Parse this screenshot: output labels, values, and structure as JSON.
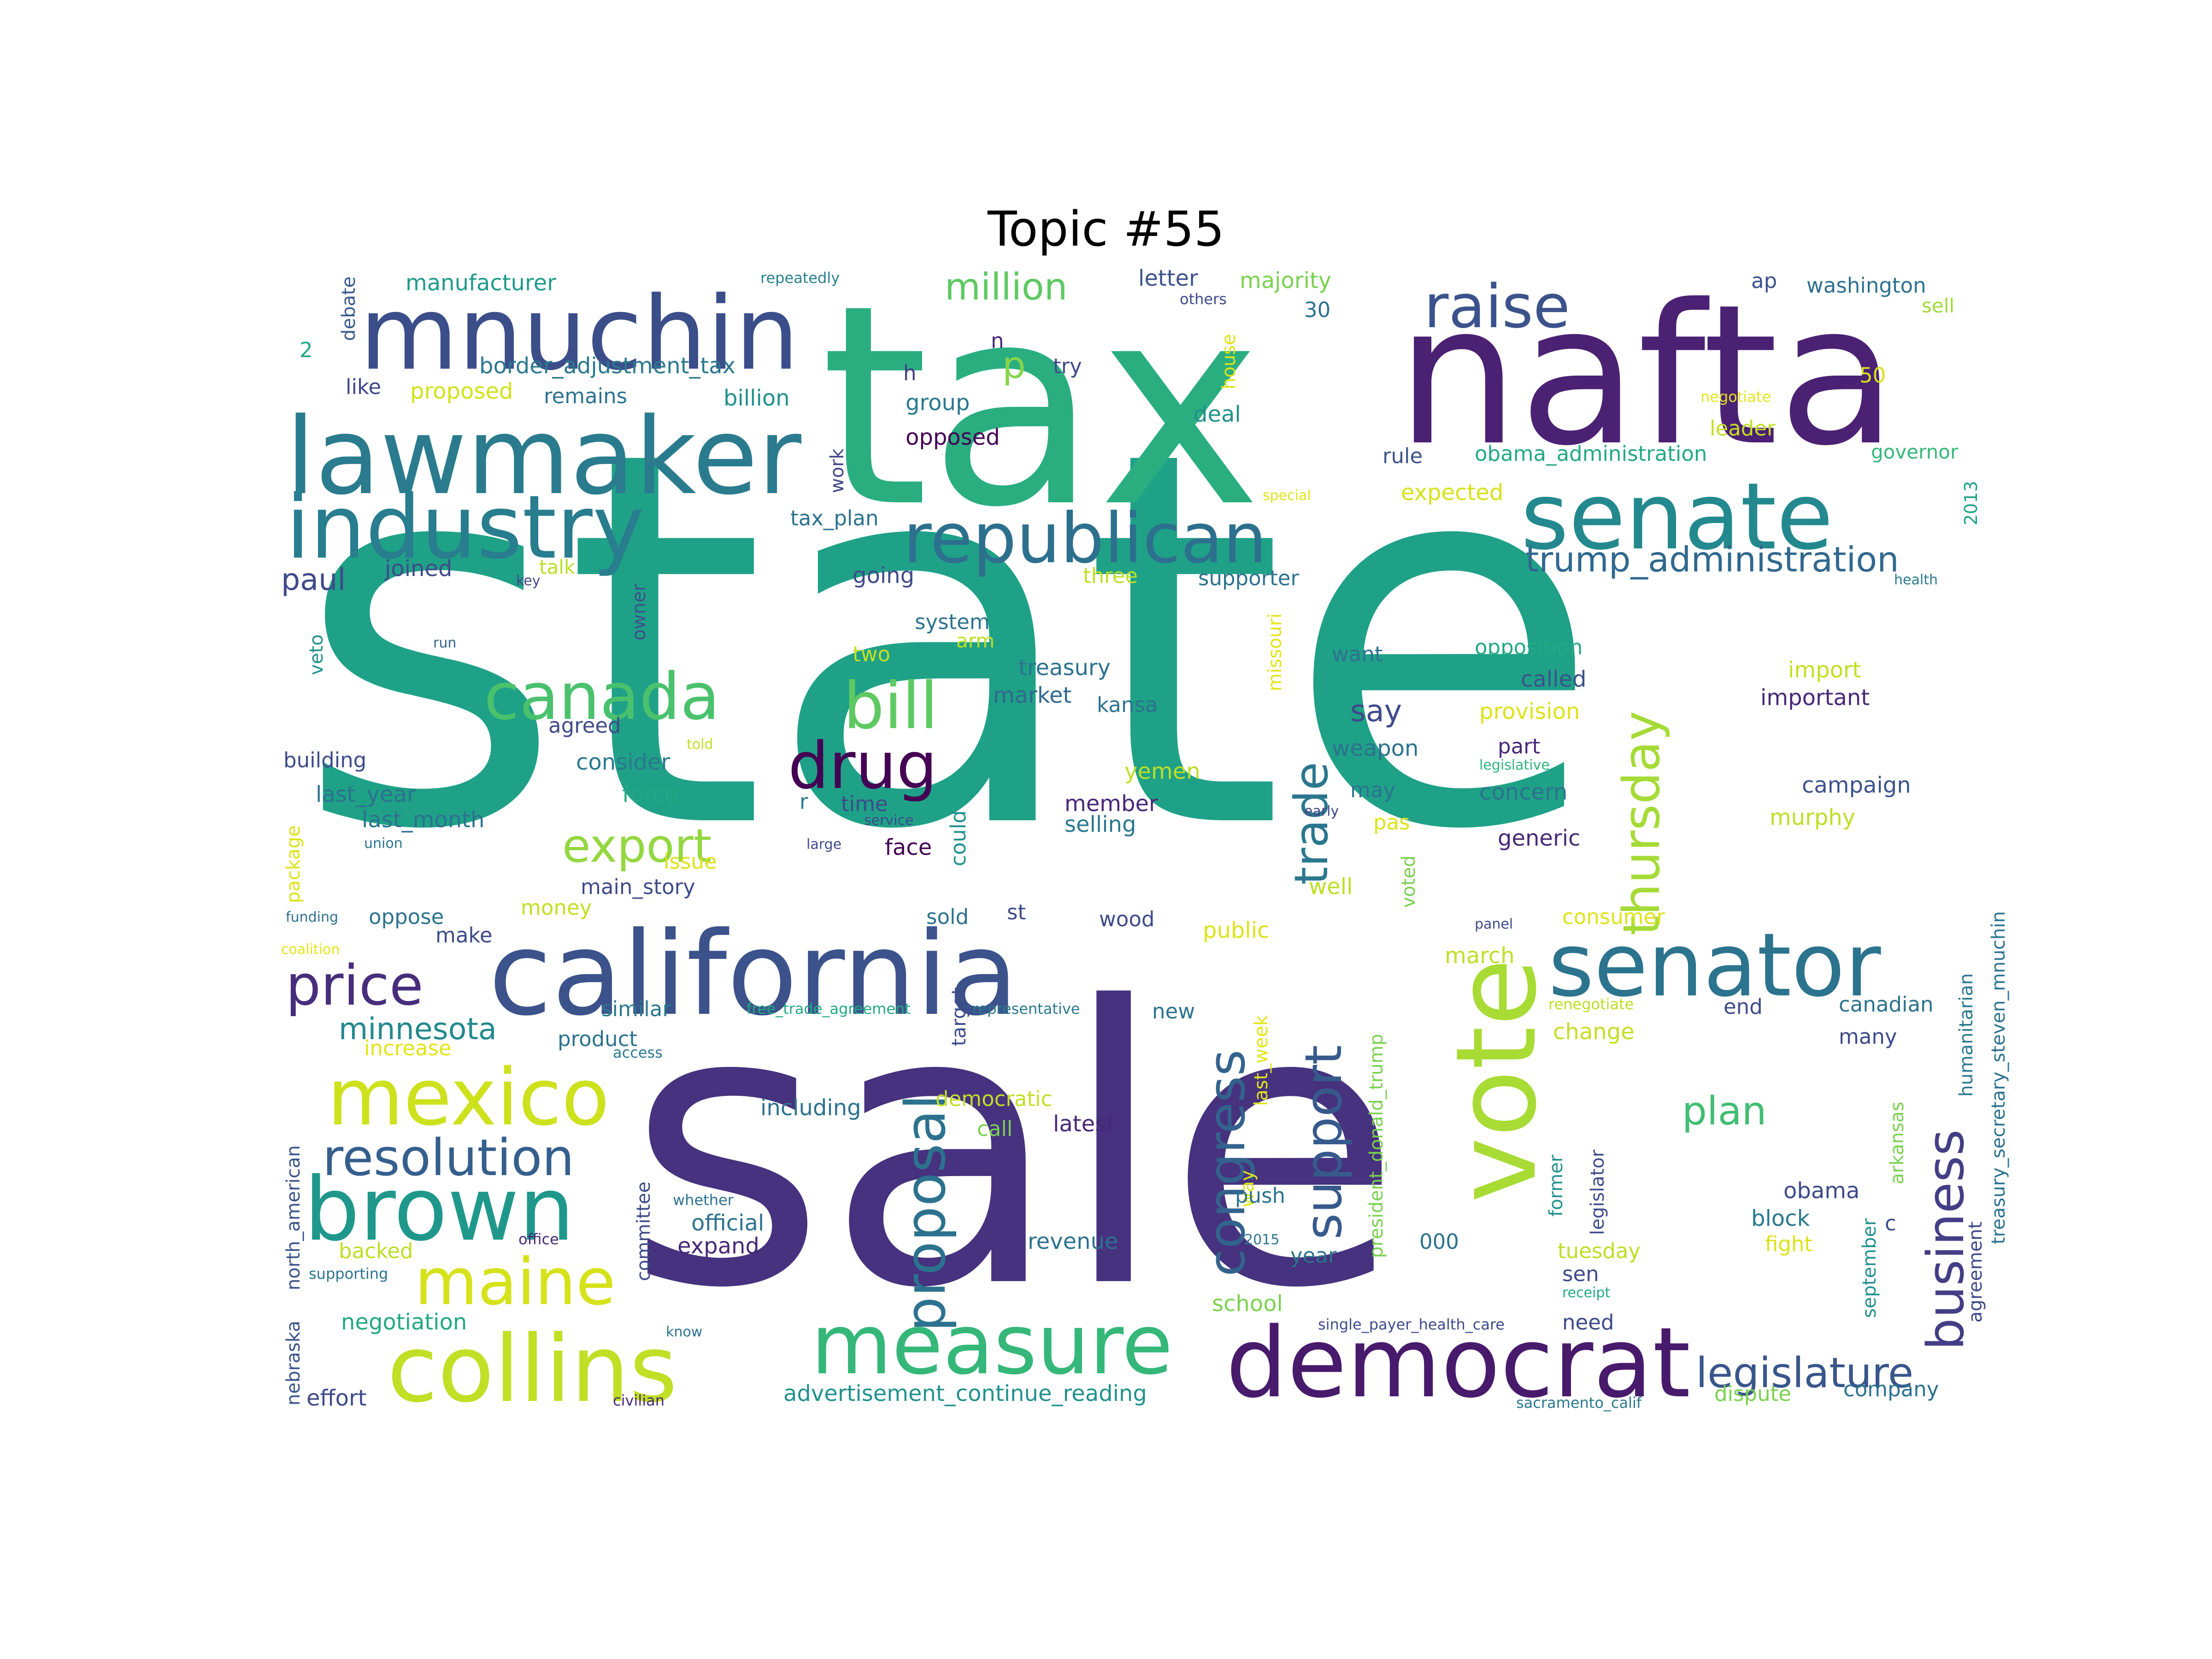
{
  "title": "Topic #55",
  "palette": {
    "dark_purple": "#440154",
    "indigo": "#46327e",
    "slate_blue": "#365c8d",
    "teal_blue": "#277f8e",
    "teal": "#1fa187",
    "green": "#4ac16d",
    "lime": "#a0da39",
    "yellow": "#cfe11c"
  },
  "words": [
    {
      "text": "state",
      "color": "#1fa187"
    },
    {
      "text": "sale",
      "color": "#46327e"
    },
    {
      "text": "tax",
      "color": "#2aae80"
    },
    {
      "text": "nafta",
      "color": "#4b2173"
    },
    {
      "text": "mnuchin",
      "color": "#3b4e8a"
    },
    {
      "text": "lawmaker",
      "color": "#2b7b8e"
    },
    {
      "text": "industry",
      "color": "#287d8e"
    },
    {
      "text": "republican",
      "color": "#2d708e"
    },
    {
      "text": "senate",
      "color": "#23898e"
    },
    {
      "text": "raise",
      "color": "#3b528b"
    },
    {
      "text": "california",
      "color": "#3b528b"
    },
    {
      "text": "vote",
      "color": "#a8db34"
    },
    {
      "text": "senator",
      "color": "#2c738e"
    },
    {
      "text": "democrat",
      "color": "#481a6c"
    },
    {
      "text": "measure",
      "color": "#35b779"
    },
    {
      "text": "collins",
      "color": "#c0df25"
    },
    {
      "text": "brown",
      "color": "#1f988b"
    },
    {
      "text": "mexico",
      "color": "#cde11d"
    },
    {
      "text": "maine",
      "color": "#d5e21a"
    },
    {
      "text": "canada",
      "color": "#4ac16d"
    },
    {
      "text": "bill",
      "color": "#5ec962"
    },
    {
      "text": "drug",
      "color": "#440154"
    },
    {
      "text": "export",
      "color": "#93d741"
    },
    {
      "text": "price",
      "color": "#472d7b"
    },
    {
      "text": "resolution",
      "color": "#355f8d"
    },
    {
      "text": "proposal",
      "color": "#2c728e"
    },
    {
      "text": "congress",
      "color": "#33638d"
    },
    {
      "text": "support",
      "color": "#375a8c"
    },
    {
      "text": "business",
      "color": "#433e85"
    },
    {
      "text": "thursday",
      "color": "#a5db36"
    },
    {
      "text": "trade",
      "color": "#2a778e"
    },
    {
      "text": "legislature",
      "color": "#39568c"
    },
    {
      "text": "plan",
      "color": "#40bd72"
    },
    {
      "text": "million",
      "color": "#5ec962"
    },
    {
      "text": "minnesota",
      "color": "#23898e"
    },
    {
      "text": "trump_administration",
      "color": "#31688e"
    },
    {
      "text": "paul",
      "color": "#3e4a89"
    },
    {
      "text": "manufacturer",
      "color": "#1f9a8a"
    },
    {
      "text": "repeatedly",
      "color": "#277f8e"
    },
    {
      "text": "letter",
      "color": "#3b528b"
    },
    {
      "text": "majority",
      "color": "#7ad151"
    },
    {
      "text": "ap",
      "color": "#3b528b"
    },
    {
      "text": "washington",
      "color": "#2d708e"
    },
    {
      "text": "sell",
      "color": "#a0da39"
    },
    {
      "text": "others",
      "color": "#3e4a89"
    },
    {
      "text": "30",
      "color": "#2c728e"
    },
    {
      "text": "debate",
      "color": "#38588c"
    },
    {
      "text": "2",
      "color": "#22a884"
    },
    {
      "text": "border_adjustment_tax",
      "color": "#2a788e"
    },
    {
      "text": "like",
      "color": "#3f4788"
    },
    {
      "text": "proposed",
      "color": "#d2e21b"
    },
    {
      "text": "remains",
      "color": "#2c728e"
    },
    {
      "text": "billion",
      "color": "#21908d"
    },
    {
      "text": "n",
      "color": "#482878"
    },
    {
      "text": "h",
      "color": "#443a83"
    },
    {
      "text": "try",
      "color": "#3e4a89"
    },
    {
      "text": "group",
      "color": "#2a788e"
    },
    {
      "text": "house",
      "color": "#dde318"
    },
    {
      "text": "deal",
      "color": "#21918c"
    },
    {
      "text": "negotiate",
      "color": "#e5e419"
    },
    {
      "text": "50",
      "color": "#d8e219"
    },
    {
      "text": "leader",
      "color": "#c2df23"
    },
    {
      "text": "governor",
      "color": "#35b779"
    },
    {
      "text": "work",
      "color": "#3f4788"
    },
    {
      "text": "opposed",
      "color": "#440154"
    },
    {
      "text": "rule",
      "color": "#3b528b"
    },
    {
      "text": "obama_administration",
      "color": "#22a884"
    },
    {
      "text": "special",
      "color": "#e2e418"
    },
    {
      "text": "expected",
      "color": "#d8e219"
    },
    {
      "text": "2013",
      "color": "#1fa188"
    },
    {
      "text": "tax_plan",
      "color": "#2c728e"
    },
    {
      "text": "p",
      "color": "#86d549"
    },
    {
      "text": "joined",
      "color": "#3e4a89"
    },
    {
      "text": "talk",
      "color": "#bade28"
    },
    {
      "text": "key",
      "color": "#404688"
    },
    {
      "text": "owner",
      "color": "#3b528b"
    },
    {
      "text": "going",
      "color": "#3e4a89"
    },
    {
      "text": "three",
      "color": "#bddf26"
    },
    {
      "text": "supporter",
      "color": "#2c728e"
    },
    {
      "text": "health",
      "color": "#2a788e"
    },
    {
      "text": "veto",
      "color": "#21918c"
    },
    {
      "text": "run",
      "color": "#33638d"
    },
    {
      "text": "system",
      "color": "#2c728e"
    },
    {
      "text": "arm",
      "color": "#bddf26"
    },
    {
      "text": "two",
      "color": "#c2df23"
    },
    {
      "text": "treasury",
      "color": "#2c728e"
    },
    {
      "text": "market",
      "color": "#31688e"
    },
    {
      "text": "kansa",
      "color": "#2c728e"
    },
    {
      "text": "missouri",
      "color": "#e2e418"
    },
    {
      "text": "want",
      "color": "#2c728e"
    },
    {
      "text": "opposition",
      "color": "#22a884"
    },
    {
      "text": "called",
      "color": "#3b528b"
    },
    {
      "text": "import",
      "color": "#c2df23"
    },
    {
      "text": "important",
      "color": "#482878"
    },
    {
      "text": "provision",
      "color": "#dde318"
    },
    {
      "text": "agreed",
      "color": "#3e4a89"
    },
    {
      "text": "told",
      "color": "#c2df23"
    },
    {
      "text": "weapon",
      "color": "#2c728e"
    },
    {
      "text": "part",
      "color": "#482878"
    },
    {
      "text": "say",
      "color": "#3e4a89"
    },
    {
      "text": "legislative",
      "color": "#2fb47c"
    },
    {
      "text": "building",
      "color": "#3e4a89"
    },
    {
      "text": "consider",
      "color": "#2a788e"
    },
    {
      "text": "force",
      "color": "#22a884"
    },
    {
      "text": "yemen",
      "color": "#bddf26"
    },
    {
      "text": "may",
      "color": "#2c728e"
    },
    {
      "text": "concern",
      "color": "#2c728e"
    },
    {
      "text": "campaign",
      "color": "#3b528b"
    },
    {
      "text": "last_year",
      "color": "#2c728e"
    },
    {
      "text": "r",
      "color": "#2a788e"
    },
    {
      "text": "time",
      "color": "#3e4a89"
    },
    {
      "text": "could",
      "color": "#21918c"
    },
    {
      "text": "member",
      "color": "#482878"
    },
    {
      "text": "early",
      "color": "#404688"
    },
    {
      "text": "murphy",
      "color": "#bddf26"
    },
    {
      "text": "last_month",
      "color": "#2c728e"
    },
    {
      "text": "service",
      "color": "#3e4a89"
    },
    {
      "text": "selling",
      "color": "#2a788e"
    },
    {
      "text": "pas",
      "color": "#dde318"
    },
    {
      "text": "generic",
      "color": "#482878"
    },
    {
      "text": "package",
      "color": "#dde318"
    },
    {
      "text": "union",
      "color": "#2c728e"
    },
    {
      "text": "large",
      "color": "#3e4a89"
    },
    {
      "text": "face",
      "color": "#440154"
    },
    {
      "text": "issue",
      "color": "#dde318"
    },
    {
      "text": "voted",
      "color": "#7ad151"
    },
    {
      "text": "main_story",
      "color": "#3e4a89"
    },
    {
      "text": "well",
      "color": "#bddf26"
    },
    {
      "text": "funding",
      "color": "#2c728e"
    },
    {
      "text": "oppose",
      "color": "#2c728e"
    },
    {
      "text": "money",
      "color": "#c2df23"
    },
    {
      "text": "sold",
      "color": "#2c728e"
    },
    {
      "text": "st",
      "color": "#3e4a89"
    },
    {
      "text": "wood",
      "color": "#3e4a89"
    },
    {
      "text": "panel",
      "color": "#3e4a89"
    },
    {
      "text": "consumer",
      "color": "#dde318"
    },
    {
      "text": "coalition",
      "color": "#e2e418"
    },
    {
      "text": "make",
      "color": "#3e4a89"
    },
    {
      "text": "public",
      "color": "#dde318"
    },
    {
      "text": "march",
      "color": "#bddf26"
    },
    {
      "text": "similar",
      "color": "#2a788e"
    },
    {
      "text": "free_trade_agreement",
      "color": "#22a884"
    },
    {
      "text": "representative",
      "color": "#2a788e"
    },
    {
      "text": "target",
      "color": "#3e4a89"
    },
    {
      "text": "new",
      "color": "#2c728e"
    },
    {
      "text": "renegotiate",
      "color": "#bddf26"
    },
    {
      "text": "end",
      "color": "#3e4a89"
    },
    {
      "text": "canadian",
      "color": "#2c728e"
    },
    {
      "text": "product",
      "color": "#2c728e"
    },
    {
      "text": "access",
      "color": "#2a788e"
    },
    {
      "text": "increase",
      "color": "#e2e418"
    },
    {
      "text": "last_week",
      "color": "#e2e418"
    },
    {
      "text": "president_donald_trump",
      "color": "#7ad151"
    },
    {
      "text": "change",
      "color": "#c2df23"
    },
    {
      "text": "many",
      "color": "#3e4a89"
    },
    {
      "text": "humanitarian",
      "color": "#2a788e"
    },
    {
      "text": "treasury_secretary_steven_mnuchin",
      "color": "#2c728e"
    },
    {
      "text": "including",
      "color": "#2c728e"
    },
    {
      "text": "democratic",
      "color": "#c2df23"
    },
    {
      "text": "latest",
      "color": "#482878"
    },
    {
      "text": "call",
      "color": "#7ad151"
    },
    {
      "text": "nebraska",
      "color": "#3b528b"
    },
    {
      "text": "north_american",
      "color": "#3b528b"
    },
    {
      "text": "way",
      "color": "#dde318"
    },
    {
      "text": "former",
      "color": "#21918c"
    },
    {
      "text": "legislator",
      "color": "#3e4a89"
    },
    {
      "text": "arkansas",
      "color": "#7ad151"
    },
    {
      "text": "committee",
      "color": "#3e4a89"
    },
    {
      "text": "obama",
      "color": "#3e4a89"
    },
    {
      "text": "whether",
      "color": "#2c728e"
    },
    {
      "text": "push",
      "color": "#2c728e"
    },
    {
      "text": "c",
      "color": "#3e4a89"
    },
    {
      "text": "official",
      "color": "#2c728e"
    },
    {
      "text": "block",
      "color": "#2a788e"
    },
    {
      "text": "agreement",
      "color": "#3e4a89"
    },
    {
      "text": "office",
      "color": "#482878"
    },
    {
      "text": "expand",
      "color": "#482878"
    },
    {
      "text": "revenue",
      "color": "#2c728e"
    },
    {
      "text": "2015",
      "color": "#2c728e"
    },
    {
      "text": "000",
      "color": "#2c728e"
    },
    {
      "text": "fight",
      "color": "#dde318"
    },
    {
      "text": "tuesday",
      "color": "#bddf26"
    },
    {
      "text": "september",
      "color": "#21918c"
    },
    {
      "text": "backed",
      "color": "#bddf26"
    },
    {
      "text": "year",
      "color": "#2c728e"
    },
    {
      "text": "sen",
      "color": "#3e4a89"
    },
    {
      "text": "supporting",
      "color": "#2c728e"
    },
    {
      "text": "receipt",
      "color": "#22a884"
    },
    {
      "text": "school",
      "color": "#7ad151"
    },
    {
      "text": "negotiation",
      "color": "#22a884"
    },
    {
      "text": "single_payer_health_care",
      "color": "#3e4a89"
    },
    {
      "text": "need",
      "color": "#3e4a89"
    },
    {
      "text": "know",
      "color": "#2c728e"
    },
    {
      "text": "effort",
      "color": "#3e4a89"
    },
    {
      "text": "civilian",
      "color": "#482878"
    },
    {
      "text": "advertisement_continue_reading",
      "color": "#21918c"
    },
    {
      "text": "dispute",
      "color": "#7ad151"
    },
    {
      "text": "company",
      "color": "#2c728e"
    },
    {
      "text": "sacramento_calif",
      "color": "#2a788e"
    }
  ]
}
